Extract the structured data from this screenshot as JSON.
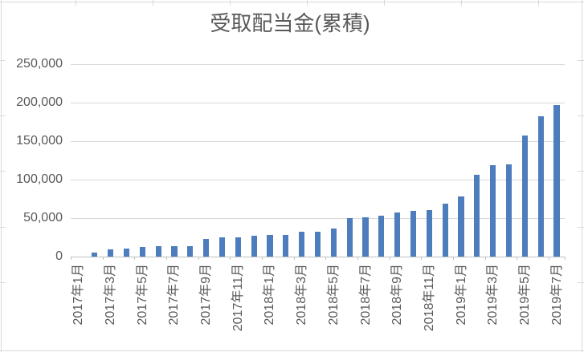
{
  "title": "受取配当金(累積)",
  "colors": {
    "bar": "#4e7dbe",
    "gridline": "#d9d9d9",
    "axis_line": "#bfbfbf",
    "label_text": "#595959",
    "title_text": "#595959",
    "background": "#ffffff",
    "sheet_grid": "#d9d9d9"
  },
  "chart_data": {
    "type": "bar",
    "title": "受取配当金(累積)",
    "legend": "none",
    "grid": true,
    "ylim": [
      0,
      250000
    ],
    "x_label_interval": 2,
    "x_label_rotation_deg": 90,
    "categories": [
      "2017年1月",
      "2017年2月",
      "2017年3月",
      "2017年4月",
      "2017年5月",
      "2017年6月",
      "2017年7月",
      "2017年8月",
      "2017年9月",
      "2017年10月",
      "2017年11月",
      "2017年12月",
      "2018年1月",
      "2018年2月",
      "2018年3月",
      "2018年4月",
      "2018年5月",
      "2018年6月",
      "2018年7月",
      "2018年8月",
      "2018年9月",
      "2018年10月",
      "2018年11月",
      "2018年12月",
      "2019年1月",
      "2019年2月",
      "2019年3月",
      "2019年4月",
      "2019年5月",
      "2019年6月",
      "2019年7月"
    ],
    "values": [
      0,
      4800,
      9800,
      10600,
      12400,
      13400,
      13400,
      13400,
      23300,
      24600,
      25000,
      26800,
      27800,
      28300,
      32300,
      32500,
      36800,
      50000,
      51200,
      52800,
      57300,
      59500,
      59900,
      68400,
      78400,
      106500,
      118700,
      119800,
      157300,
      182300,
      196900
    ],
    "y_ticks": [
      {
        "value": 0,
        "label": "0"
      },
      {
        "value": 50000,
        "label": "50,000"
      },
      {
        "value": 100000,
        "label": "100,000"
      },
      {
        "value": 150000,
        "label": "150,000"
      },
      {
        "value": 200000,
        "label": "200,000"
      },
      {
        "value": 250000,
        "label": "250,000"
      }
    ]
  }
}
